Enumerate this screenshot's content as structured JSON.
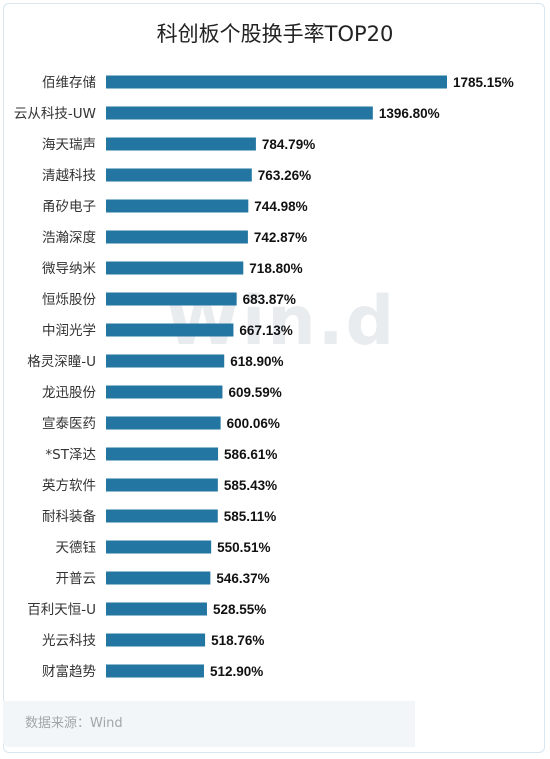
{
  "chart_data": {
    "type": "bar",
    "orientation": "horizontal",
    "title": "科创板个股换手率TOP20",
    "categories": [
      "佰维存储",
      "云从科技-UW",
      "海天瑞声",
      "清越科技",
      "甬矽电子",
      "浩瀚深度",
      "微导纳米",
      "恒烁股份",
      "中润光学",
      "格灵深瞳-U",
      "龙迅股份",
      "宣泰医药",
      "*ST泽达",
      "英方软件",
      "耐科装备",
      "天德钰",
      "开普云",
      "百利天恒-U",
      "光云科技",
      "财富趋势"
    ],
    "values": [
      1785.15,
      1396.8,
      784.79,
      763.26,
      744.98,
      742.87,
      718.8,
      683.87,
      667.13,
      618.9,
      609.59,
      600.06,
      586.61,
      585.43,
      585.11,
      550.51,
      546.37,
      528.55,
      518.76,
      512.9
    ],
    "value_labels": [
      "1785.15%",
      "1396.80%",
      "784.79%",
      "763.26%",
      "744.98%",
      "742.87%",
      "718.80%",
      "683.87%",
      "667.13%",
      "618.90%",
      "609.59%",
      "600.06%",
      "586.61%",
      "585.43%",
      "585.11%",
      "550.51%",
      "546.37%",
      "528.55%",
      "518.76%",
      "512.90%"
    ],
    "bar_color": "#2276a1"
  },
  "watermark": "Wind",
  "source": "数据来源：Wind"
}
